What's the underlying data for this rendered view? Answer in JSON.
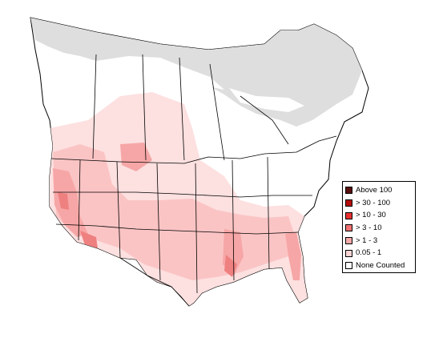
{
  "map": {
    "colors": {
      "land": "#ffffff",
      "none_region": "#dedede",
      "border": "#000000",
      "level_1": "#fde0e0",
      "level_2": "#fbc4c4",
      "level_3": "#f6a6a6",
      "level_4": "#ef8080"
    }
  },
  "legend": {
    "items": [
      {
        "label": "Above 100",
        "color": "#5a1010"
      },
      {
        "label": "> 30 - 100",
        "color": "#b40d0d"
      },
      {
        "label": "> 10 - 30",
        "color": "#e83030"
      },
      {
        "label": "> 3 - 10",
        "color": "#f07272"
      },
      {
        "label": "> 1 - 3",
        "color": "#f6aaaa"
      },
      {
        "label": "0.05 - 1",
        "color": "#fcd4d4"
      },
      {
        "label": "None Counted",
        "color": "#ffffff"
      }
    ]
  }
}
